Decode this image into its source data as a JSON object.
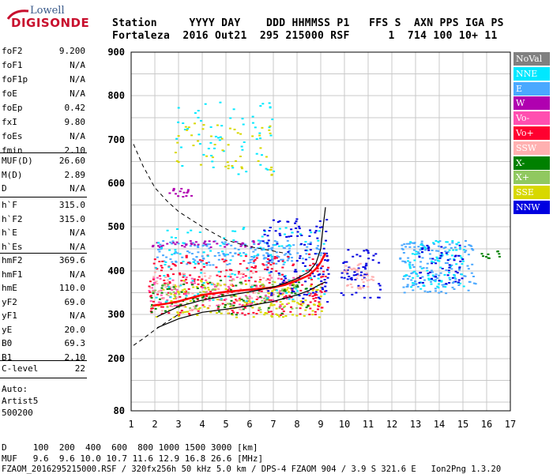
{
  "logo": {
    "lowell": "Lowell",
    "digisonde": "DIGISONDE"
  },
  "header": {
    "line1": "Station     YYYY DAY    DDD HHMMSS P1   FFS S  AXN PPS IGA PS",
    "line2": "Fortaleza  2016 Out21  295 215000 RSF      1  714 100 10+ 11"
  },
  "params_group1": [
    {
      "label": "foF2",
      "value": "9.200"
    },
    {
      "label": "foF1",
      "value": "N/A"
    },
    {
      "label": "foF1p",
      "value": "N/A"
    },
    {
      "label": "foE",
      "value": "N/A"
    },
    {
      "label": "foEp",
      "value": "0.42"
    },
    {
      "label": "fxI",
      "value": "9.80"
    },
    {
      "label": "foEs",
      "value": "N/A"
    },
    {
      "label": "fmin",
      "value": "2.10"
    }
  ],
  "params_group2": [
    {
      "label": "MUF(D)",
      "value": "26.60"
    },
    {
      "label": "M(D)",
      "value": "2.89"
    },
    {
      "label": "D",
      "value": "N/A"
    }
  ],
  "params_group3": [
    {
      "label": "h`F",
      "value": "315.0"
    },
    {
      "label": "h`F2",
      "value": "315.0"
    },
    {
      "label": "h`E",
      "value": "N/A"
    },
    {
      "label": "h`Es",
      "value": "N/A"
    }
  ],
  "params_group4": [
    {
      "label": "hmF2",
      "value": "369.6"
    },
    {
      "label": "hmF1",
      "value": "N/A"
    },
    {
      "label": "hmE",
      "value": "110.0"
    },
    {
      "label": "yF2",
      "value": "69.0"
    },
    {
      "label": "yF1",
      "value": "N/A"
    },
    {
      "label": "yE",
      "value": "20.0"
    },
    {
      "label": "B0",
      "value": "69.3"
    },
    {
      "label": "B1",
      "value": "2.10"
    }
  ],
  "clevel": {
    "label": "C-level",
    "value": "22"
  },
  "auto": {
    "line1": "Auto:",
    "line2": "Artist5",
    "line3": "500200"
  },
  "legend": [
    {
      "label": "NoVal",
      "color": "#808080"
    },
    {
      "label": "NNE",
      "color": "#00e8ff"
    },
    {
      "label": "E",
      "color": "#4aa8ff"
    },
    {
      "label": "W",
      "color": "#b000b0"
    },
    {
      "label": "Vo-",
      "color": "#ff4fb0"
    },
    {
      "label": "Vo+",
      "color": "#ff0030"
    },
    {
      "label": "SSW",
      "color": "#ffb0b0"
    },
    {
      "label": "X-",
      "color": "#008000"
    },
    {
      "label": "X+",
      "color": "#90c860"
    },
    {
      "label": "SSE",
      "color": "#d8d800"
    },
    {
      "label": "NNW",
      "color": "#0000e0"
    }
  ],
  "footer": {
    "line1": "D     100  200  400  600  800 1000 1500 3000 [km]",
    "line2": "MUF   9.6  9.6 10.0 10.7 11.6 12.9 16.8 26.6 [MHz]",
    "line3": "FZAOM_2016295215000.RSF / 320fx256h 50 kHz 5.0 km / DPS-4 FZAOM 904 / 3.9 S 321.6 E   Ion2Png 1.3.20"
  },
  "chart_data": {
    "type": "scatter",
    "xlim": [
      1,
      17
    ],
    "ylim": [
      80,
      900
    ],
    "xticks": [
      1,
      2,
      3,
      4,
      5,
      6,
      7,
      8,
      9,
      10,
      11,
      12,
      13,
      14,
      15,
      16,
      17
    ],
    "yticks": [
      80,
      200,
      300,
      400,
      500,
      600,
      700,
      800,
      900
    ],
    "grid": true,
    "clusters": [
      {
        "name": "E",
        "x": [
          2.0,
          9.0
        ],
        "y": [
          415,
          470
        ],
        "density": 180
      },
      {
        "name": "W",
        "x": [
          1.8,
          6.5
        ],
        "y": [
          455,
          470
        ],
        "density": 40
      },
      {
        "name": "Vo+",
        "x": [
          1.7,
          9.3
        ],
        "y": [
          300,
          440
        ],
        "density": 300
      },
      {
        "name": "Vo-",
        "x": [
          1.7,
          8.0
        ],
        "y": [
          320,
          390
        ],
        "density": 120
      },
      {
        "name": "SSE",
        "x": [
          2.0,
          9.0
        ],
        "y": [
          295,
          380
        ],
        "density": 160
      },
      {
        "name": "SSW",
        "x": [
          1.7,
          7.0
        ],
        "y": [
          310,
          400
        ],
        "density": 90
      },
      {
        "name": "X-",
        "x": [
          1.7,
          8.5
        ],
        "y": [
          300,
          380
        ],
        "density": 80
      },
      {
        "name": "X+",
        "x": [
          1.8,
          8.0
        ],
        "y": [
          310,
          380
        ],
        "density": 60
      },
      {
        "name": "NNE",
        "x": [
          2.0,
          9.2
        ],
        "y": [
          330,
          500
        ],
        "density": 120
      },
      {
        "name": "NNW",
        "x": [
          6.5,
          9.3
        ],
        "y": [
          330,
          520
        ],
        "density": 120
      },
      {
        "name": "NNE",
        "x": [
          2.8,
          7.0
        ],
        "y": [
          620,
          790
        ],
        "density": 60
      },
      {
        "name": "SSE",
        "x": [
          2.8,
          7.0
        ],
        "y": [
          620,
          740
        ],
        "density": 50
      },
      {
        "name": "W",
        "x": [
          2.5,
          3.5
        ],
        "y": [
          570,
          590
        ],
        "density": 15
      },
      {
        "name": "NNW",
        "x": [
          9.8,
          11.5
        ],
        "y": [
          340,
          450
        ],
        "density": 60
      },
      {
        "name": "SSW",
        "x": [
          9.8,
          11.2
        ],
        "y": [
          360,
          420
        ],
        "density": 40
      },
      {
        "name": "E",
        "x": [
          12.3,
          15.5
        ],
        "y": [
          350,
          470
        ],
        "density": 160
      },
      {
        "name": "NNE",
        "x": [
          12.5,
          15.0
        ],
        "y": [
          360,
          470
        ],
        "density": 90
      },
      {
        "name": "NNW",
        "x": [
          13.0,
          15.0
        ],
        "y": [
          370,
          460
        ],
        "density": 50
      },
      {
        "name": "X-",
        "x": [
          15.5,
          16.5
        ],
        "y": [
          430,
          450
        ],
        "density": 10
      }
    ],
    "curves": {
      "muf_dashed": {
        "x": [
          1.1,
          1.5,
          2.0,
          2.5,
          3.0,
          4.0,
          5.0,
          6.0,
          7.0,
          7.5
        ],
        "y": [
          690,
          640,
          590,
          560,
          535,
          500,
          470,
          455,
          445,
          440
        ]
      },
      "lower_dashed": {
        "x": [
          1.1,
          1.5,
          2.0,
          2.5,
          3.0
        ],
        "y": [
          230,
          245,
          265,
          283,
          300
        ]
      },
      "solid_lower": {
        "x": [
          2.1,
          3.0,
          4.0,
          5.0,
          6.0,
          7.0,
          8.0,
          8.5,
          9.0,
          9.2
        ],
        "y": [
          270,
          290,
          305,
          312,
          320,
          330,
          345,
          355,
          370,
          375
        ]
      },
      "solid_profile": {
        "x": [
          2.1,
          3.0,
          4.0,
          5.0,
          6.0,
          7.0,
          7.5,
          8.0,
          8.5,
          8.8,
          9.0,
          9.1,
          9.2
        ],
        "y": [
          295,
          318,
          333,
          343,
          352,
          363,
          372,
          383,
          398,
          418,
          450,
          500,
          545
        ]
      },
      "red_trace": {
        "x": [
          1.9,
          2.5,
          3.0,
          4.0,
          5.0,
          6.0,
          7.0,
          7.5,
          8.0,
          8.5,
          8.8,
          9.0,
          9.2
        ],
        "y": [
          320,
          325,
          330,
          345,
          352,
          357,
          362,
          368,
          378,
          390,
          405,
          420,
          440
        ]
      }
    }
  }
}
